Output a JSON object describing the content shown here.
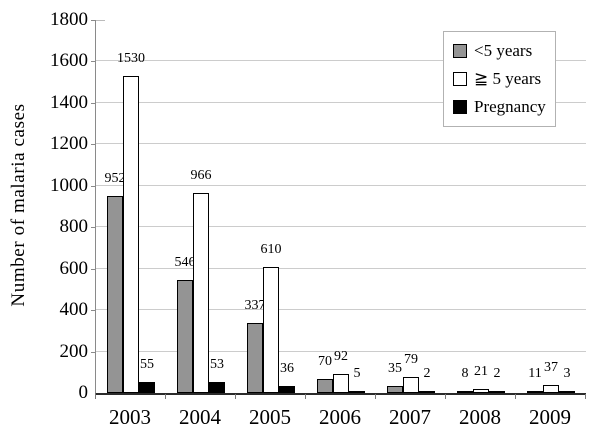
{
  "chart_data": {
    "type": "bar",
    "title": "",
    "xlabel": "",
    "ylabel": "Number of malaria cases",
    "categories": [
      "2003",
      "2004",
      "2005",
      "2006",
      "2007",
      "2008",
      "2009"
    ],
    "series": [
      {
        "name": "<5 years",
        "color": "#949494",
        "values": [
          952,
          546,
          337,
          70,
          35,
          8,
          11
        ]
      },
      {
        "name": "≧ 5 years",
        "color": "#ffffff",
        "values": [
          1530,
          966,
          610,
          92,
          79,
          21,
          37
        ]
      },
      {
        "name": "Pregnancy",
        "color": "#000000",
        "values": [
          55,
          53,
          36,
          5,
          2,
          2,
          3
        ]
      }
    ],
    "ylim": [
      0,
      1800
    ],
    "ytick_step": 200,
    "yticks": [
      0,
      200,
      400,
      600,
      800,
      1000,
      1200,
      1400,
      1600,
      1800
    ],
    "grid": true,
    "legend_position": "top-right",
    "data_labels": true,
    "colors": {
      "grid": "#cccccc",
      "y_axis": "#8a8a8a",
      "x_axis": "#2b2b2b",
      "bar_border": "#000000",
      "legend_border": "#b2b2b2",
      "text": "#000000"
    }
  }
}
